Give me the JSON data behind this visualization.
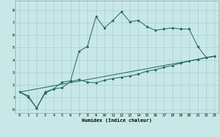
{
  "xlabel": "Humidex (Indice chaleur)",
  "bg_color": "#c8e8e8",
  "line_color": "#2a6e62",
  "grid_color": "#a8cccc",
  "xlim": [
    -0.5,
    23.5
  ],
  "ylim": [
    -0.3,
    8.8
  ],
  "xticks": [
    0,
    1,
    2,
    3,
    4,
    5,
    6,
    7,
    8,
    9,
    10,
    11,
    12,
    13,
    14,
    15,
    16,
    17,
    18,
    19,
    20,
    21,
    22,
    23
  ],
  "yticks": [
    0,
    1,
    2,
    3,
    4,
    5,
    6,
    7,
    8
  ],
  "series1_x": [
    0,
    1,
    2,
    3,
    4,
    5,
    6,
    7,
    8,
    9,
    10,
    11,
    12,
    13,
    14,
    15,
    16,
    17,
    18,
    19,
    20,
    21,
    22,
    23
  ],
  "series1_y": [
    1.4,
    1.0,
    0.1,
    1.4,
    1.65,
    2.2,
    2.3,
    4.7,
    5.1,
    7.5,
    6.6,
    7.2,
    7.9,
    7.1,
    7.2,
    6.7,
    6.4,
    6.5,
    6.6,
    6.5,
    6.5,
    5.1,
    4.2,
    4.3
  ],
  "series2_x": [
    0,
    1,
    2,
    3,
    4,
    5,
    6,
    7,
    8,
    9,
    10,
    11,
    12,
    13,
    14,
    15,
    16,
    17,
    18,
    19,
    20,
    21,
    22,
    23
  ],
  "series2_y": [
    1.4,
    1.1,
    0.1,
    1.3,
    1.65,
    1.75,
    2.25,
    2.4,
    2.2,
    2.15,
    2.35,
    2.5,
    2.6,
    2.7,
    2.85,
    3.1,
    3.2,
    3.4,
    3.55,
    3.75,
    3.9,
    4.05,
    4.2,
    4.3
  ],
  "series3_x": [
    0,
    23
  ],
  "series3_y": [
    1.4,
    4.3
  ]
}
